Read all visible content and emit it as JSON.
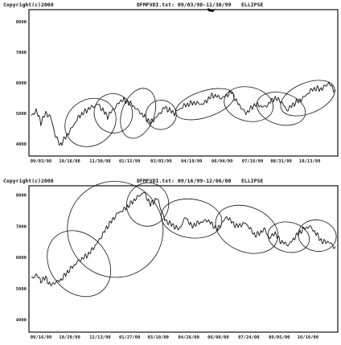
{
  "chart_data": [
    {
      "type": "line",
      "header": {
        "copyright": "Copyright(c)2000",
        "file_range": "DFMFVDI.txt: 09/03/98-11/30/99",
        "method": "ELLIPSE"
      },
      "ylim": [
        3600,
        8400
      ],
      "yticks": [
        "4000",
        "5000",
        "6000",
        "7000",
        "8000"
      ],
      "x_count": 320,
      "xtick_labels": [
        {
          "label": "09/03/98",
          "i": 0
        },
        {
          "label": "10/16/98",
          "i": 30
        },
        {
          "label": "11/30/98",
          "i": 62
        },
        {
          "label": "01/15/99",
          "i": 93
        },
        {
          "label": "03/03/99",
          "i": 126
        },
        {
          "label": "04/19/99",
          "i": 158
        },
        {
          "label": "06/04/99",
          "i": 190
        },
        {
          "label": "07/19/99",
          "i": 222
        },
        {
          "label": "08/31/99",
          "i": 252
        },
        {
          "label": "10/13/99",
          "i": 282
        }
      ],
      "series": [
        {
          "anchors": [
            [
              0,
              4900
            ],
            [
              5,
              5100
            ],
            [
              10,
              4700
            ],
            [
              15,
              5000
            ],
            [
              20,
              4900
            ],
            [
              25,
              4300
            ],
            [
              30,
              3950
            ],
            [
              40,
              4400
            ],
            [
              50,
              4900
            ],
            [
              60,
              5150
            ],
            [
              70,
              5300
            ],
            [
              80,
              4900
            ],
            [
              88,
              5200
            ],
            [
              95,
              5450
            ],
            [
              105,
              5300
            ],
            [
              115,
              5000
            ],
            [
              125,
              4700
            ],
            [
              132,
              4900
            ],
            [
              140,
              5200
            ],
            [
              150,
              5000
            ],
            [
              160,
              5250
            ],
            [
              170,
              5350
            ],
            [
              180,
              5300
            ],
            [
              190,
              5600
            ],
            [
              200,
              5500
            ],
            [
              210,
              5700
            ],
            [
              215,
              5400
            ],
            [
              225,
              5000
            ],
            [
              235,
              5300
            ],
            [
              245,
              5200
            ],
            [
              255,
              5500
            ],
            [
              262,
              5400
            ],
            [
              268,
              5100
            ],
            [
              275,
              5300
            ],
            [
              285,
              5500
            ],
            [
              295,
              5800
            ],
            [
              305,
              5800
            ],
            [
              312,
              6000
            ],
            [
              319,
              5700
            ]
          ]
        }
      ],
      "ellipses": [
        {
          "i": 62,
          "v": 4700,
          "ri": 28,
          "rv": 750,
          "rot": -35
        },
        {
          "i": 86,
          "v": 5000,
          "ri": 20,
          "rv": 650,
          "rot": -25
        },
        {
          "i": 112,
          "v": 5000,
          "ri": 17,
          "rv": 850,
          "rot": 20
        },
        {
          "i": 136,
          "v": 4950,
          "ri": 16,
          "rv": 480,
          "rot": -10
        },
        {
          "i": 182,
          "v": 5300,
          "ri": 32,
          "rv": 430,
          "rot": -18
        },
        {
          "i": 228,
          "v": 5300,
          "ri": 26,
          "rv": 560,
          "rot": 12
        },
        {
          "i": 262,
          "v": 5150,
          "ri": 26,
          "rv": 520,
          "rot": 15
        },
        {
          "i": 290,
          "v": 5500,
          "ri": 30,
          "rv": 500,
          "rot": -22
        }
      ]
    },
    {
      "type": "line",
      "header": {
        "copyright": "Copyright(c)2000",
        "file_range": "DFMFVDI.txt: 09/16/99-12/06/00",
        "method": "ELLIPSE"
      },
      "ylim": [
        3600,
        8300
      ],
      "yticks": [
        "4000",
        "5000",
        "6000",
        "7000",
        "8000"
      ],
      "x_count": 320,
      "xtick_labels": [
        {
          "label": "09/16/99",
          "i": 0
        },
        {
          "label": "10/29/99",
          "i": 30
        },
        {
          "label": "12/13/99",
          "i": 62
        },
        {
          "label": "01/27/00",
          "i": 93
        },
        {
          "label": "03/10/00",
          "i": 123
        },
        {
          "label": "04/26/00",
          "i": 155
        },
        {
          "label": "06/08/00",
          "i": 186
        },
        {
          "label": "07/24/00",
          "i": 218
        },
        {
          "label": "09/05/00",
          "i": 250
        },
        {
          "label": "10/19/00",
          "i": 280
        }
      ],
      "series": [
        {
          "anchors": [
            [
              0,
              5300
            ],
            [
              5,
              5450
            ],
            [
              10,
              5250
            ],
            [
              15,
              5350
            ],
            [
              20,
              5100
            ],
            [
              25,
              5200
            ],
            [
              30,
              5250
            ],
            [
              40,
              5600
            ],
            [
              50,
              5900
            ],
            [
              60,
              6100
            ],
            [
              70,
              6500
            ],
            [
              80,
              7000
            ],
            [
              90,
              7400
            ],
            [
              100,
              7600
            ],
            [
              110,
              7900
            ],
            [
              118,
              8100
            ],
            [
              125,
              7700
            ],
            [
              132,
              7900
            ],
            [
              140,
              7200
            ],
            [
              150,
              7000
            ],
            [
              155,
              6900
            ],
            [
              162,
              7300
            ],
            [
              168,
              7000
            ],
            [
              175,
              7100
            ],
            [
              185,
              7200
            ],
            [
              195,
              6900
            ],
            [
              205,
              7300
            ],
            [
              215,
              7000
            ],
            [
              225,
              7100
            ],
            [
              235,
              6700
            ],
            [
              245,
              6900
            ],
            [
              250,
              6600
            ],
            [
              255,
              6800
            ],
            [
              262,
              6500
            ],
            [
              270,
              6400
            ],
            [
              278,
              6700
            ],
            [
              285,
              6900
            ],
            [
              292,
              7000
            ],
            [
              298,
              6800
            ],
            [
              305,
              6500
            ],
            [
              312,
              6500
            ],
            [
              319,
              6300
            ]
          ]
        }
      ],
      "ellipses": [
        {
          "i": 50,
          "v": 5800,
          "ri": 30,
          "rv": 1150,
          "rot": -40
        },
        {
          "i": 88,
          "v": 6900,
          "ri": 50,
          "rv": 1550,
          "rot": -38
        },
        {
          "i": 122,
          "v": 7700,
          "ri": 22,
          "rv": 700,
          "rot": 15
        },
        {
          "i": 168,
          "v": 7250,
          "ri": 32,
          "rv": 620,
          "rot": 8
        },
        {
          "i": 226,
          "v": 6900,
          "ri": 34,
          "rv": 720,
          "rot": 22
        },
        {
          "i": 270,
          "v": 6650,
          "ri": 22,
          "rv": 480,
          "rot": 12
        },
        {
          "i": 300,
          "v": 6700,
          "ri": 20,
          "rv": 500,
          "rot": 10
        }
      ]
    }
  ]
}
